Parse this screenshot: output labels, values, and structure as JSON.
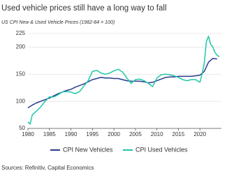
{
  "chart_data": {
    "type": "line",
    "title": "Used vehicle prices still have a long way to fall",
    "subtitle": "US CPI New & Used Vehicle Prices (1982-84 = 100)",
    "source": "Sources: Refinitiv, Capital Economics",
    "xlim": [
      1980,
      2025
    ],
    "xticks": [
      1980,
      1985,
      1990,
      1995,
      2000,
      2005,
      2010,
      2015,
      2020
    ],
    "ylim": [
      50,
      225
    ],
    "yticks": [
      50,
      100,
      150,
      200,
      225
    ],
    "grid": true,
    "legend": "bottom",
    "series": [
      {
        "name": "CPI New Vehicles",
        "color": "#2b3a8f",
        "x": [
          1980,
          1981,
          1982,
          1983,
          1984,
          1985,
          1986,
          1987,
          1988,
          1989,
          1990,
          1991,
          1992,
          1993,
          1994,
          1995,
          1996,
          1997,
          1998,
          1999,
          2000,
          2001,
          2002,
          2003,
          2004,
          2005,
          2006,
          2007,
          2008,
          2009,
          2010,
          2011,
          2012,
          2013,
          2014,
          2015,
          2016,
          2017,
          2018,
          2019,
          2020,
          2021,
          2022,
          2023,
          2024
        ],
        "values": [
          88,
          93,
          97,
          100,
          103,
          106,
          110,
          114,
          117,
          120,
          122,
          126,
          129,
          132,
          136,
          140,
          142,
          144,
          143,
          143,
          142,
          142,
          140,
          138,
          137,
          137,
          137,
          136,
          134,
          135,
          138,
          141,
          144,
          145,
          145,
          146,
          146,
          146,
          146,
          147,
          148,
          155,
          172,
          179,
          178
        ]
      },
      {
        "name": "CPI Used Vehicles",
        "color": "#1fc7a6",
        "x": [
          1980,
          1980.5,
          1981,
          1982,
          1983,
          1984,
          1985,
          1986,
          1987,
          1988,
          1989,
          1990,
          1991,
          1992,
          1993,
          1994,
          1995,
          1996,
          1997,
          1998,
          1999,
          2000,
          2001,
          2002,
          2003,
          2004,
          2005,
          2006,
          2007,
          2008,
          2009,
          2010,
          2011,
          2012,
          2013,
          2014,
          2015,
          2016,
          2017,
          2018,
          2019,
          2020,
          2020.5,
          2021,
          2021.5,
          2022,
          2022.5,
          2023,
          2023.5,
          2024,
          2024.5
        ],
        "values": [
          62,
          58,
          75,
          82,
          90,
          100,
          108,
          108,
          112,
          117,
          118,
          117,
          114,
          118,
          128,
          138,
          155,
          157,
          152,
          150,
          152,
          156,
          159,
          154,
          143,
          133,
          140,
          141,
          138,
          133,
          127,
          143,
          149,
          150,
          149,
          147,
          144,
          140,
          138,
          140,
          140,
          135,
          150,
          170,
          210,
          220,
          205,
          200,
          190,
          185,
          182
        ]
      }
    ]
  }
}
